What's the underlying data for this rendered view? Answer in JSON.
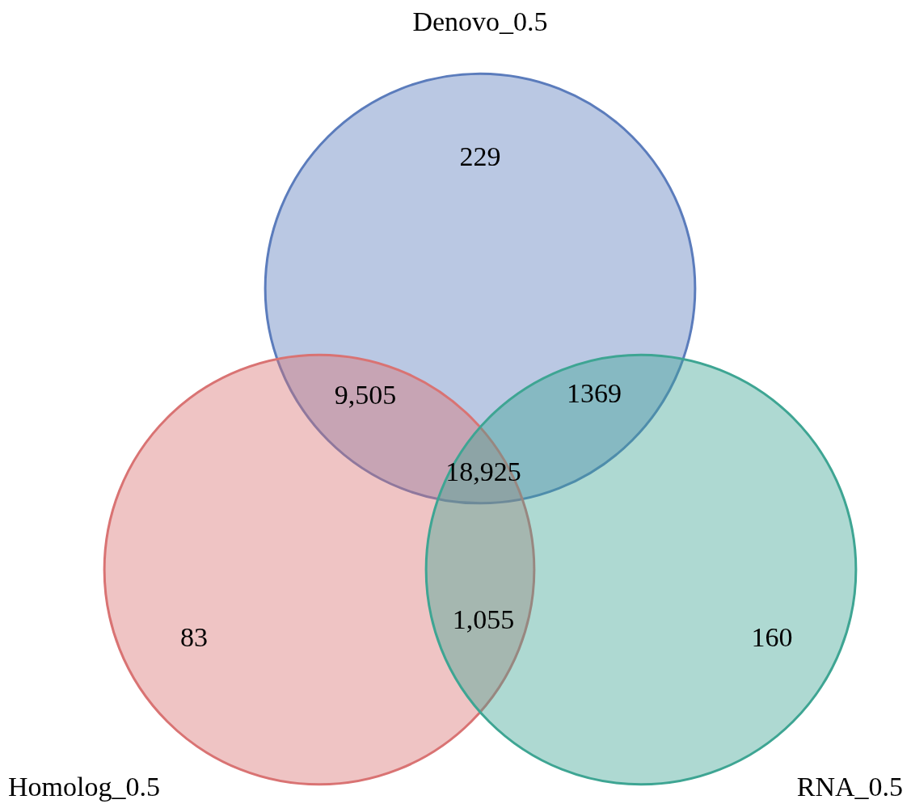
{
  "chart_data": {
    "type": "other",
    "categories": [
      null,
      null,
      null,
      null,
      null,
      null,
      null
    ],
    "values": [
      229,
      9505,
      1369,
      18925,
      83,
      1055,
      160
    ],
    "value_labels": [
      "229",
      "9,505",
      "1369",
      "18,925",
      "83",
      "1,055",
      "160"
    ],
    "annotations": [
      "Denovo_0.5",
      "Homolog_0.5",
      "RNA_0.5"
    ]
  }
}
